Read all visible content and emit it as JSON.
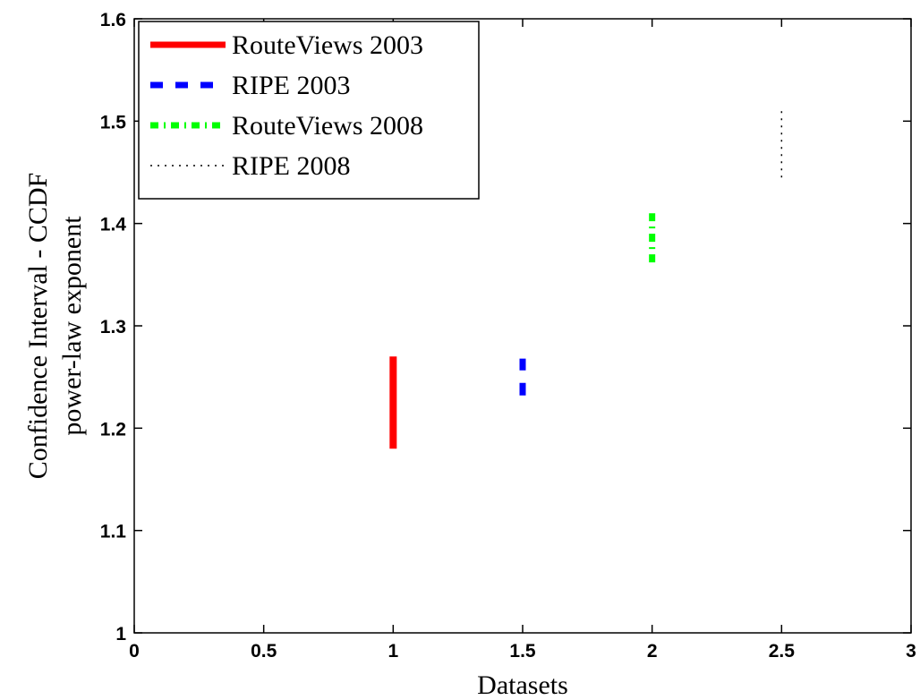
{
  "chart_data": {
    "type": "errorbar",
    "xlabel": "Datasets",
    "ylabel_lines": [
      "Confidence Interval - CCDF",
      "power-law exponent"
    ],
    "xlim": [
      0,
      3
    ],
    "ylim": [
      1,
      1.6
    ],
    "xticks": [
      "0",
      "0.5",
      "1",
      "1.5",
      "2",
      "2.5",
      "3"
    ],
    "yticks": [
      "1",
      "1.1",
      "1.2",
      "1.3",
      "1.4",
      "1.5",
      "1.6"
    ],
    "grid": false,
    "legend_position": "top-left",
    "series": [
      {
        "name": "RouteViews 2003",
        "x": 1.0,
        "low": 1.18,
        "high": 1.27,
        "color": "#ff0000",
        "style": "solid"
      },
      {
        "name": "RIPE 2003",
        "x": 1.5,
        "low": 1.232,
        "high": 1.268,
        "color": "#0000ff",
        "style": "dashed"
      },
      {
        "name": "RouteViews 2008",
        "x": 2.0,
        "low": 1.362,
        "high": 1.41,
        "color": "#00ff00",
        "style": "dashdot"
      },
      {
        "name": "RIPE 2008",
        "x": 2.5,
        "low": 1.445,
        "high": 1.512,
        "color": "#000000",
        "style": "dotted"
      }
    ]
  }
}
